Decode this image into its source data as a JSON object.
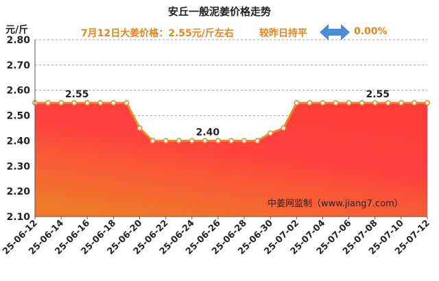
{
  "header": {
    "title": "安丘一般泥姜价格走势",
    "unit_label": "元/斤",
    "price_text": "7月12日大姜价格：2.55元/斤左右",
    "compare_text": "较昨日持平",
    "change_pct": "0.00%",
    "arrow_icon": "double-arrow-icon"
  },
  "watermark": "中姜网监制（www.jiang7.com）",
  "colors": {
    "line": "#e8892b",
    "area_top": "#ff3b3b",
    "area_bottom": "#f07a2a",
    "subtitle": "#e8831a",
    "arrow": "#4a8fd6"
  },
  "chart_data": {
    "type": "area",
    "title": "安丘一般泥姜价格走势",
    "ylabel": "元/斤",
    "xlabel": "",
    "ylim": [
      2.1,
      2.8
    ],
    "yticks": [
      "2.10",
      "2.20",
      "2.30",
      "2.40",
      "2.50",
      "2.60",
      "2.70",
      "2.80"
    ],
    "grid": true,
    "x": [
      "25-06-12",
      "25-06-13",
      "25-06-14",
      "25-06-15",
      "25-06-16",
      "25-06-17",
      "25-06-18",
      "25-06-19",
      "25-06-20",
      "25-06-21",
      "25-06-22",
      "25-06-23",
      "25-06-24",
      "25-06-25",
      "25-06-26",
      "25-06-27",
      "25-06-28",
      "25-06-29",
      "25-06-30",
      "25-07-01",
      "25-07-02",
      "25-07-03",
      "25-07-04",
      "25-07-05",
      "25-07-06",
      "25-07-07",
      "25-07-08",
      "25-07-09",
      "25-07-10",
      "25-07-11",
      "25-07-12"
    ],
    "xtick_labels": [
      "25-06-12",
      "25-06-14",
      "25-06-16",
      "25-06-18",
      "25-06-20",
      "25-06-22",
      "25-06-24",
      "25-06-26",
      "25-06-28",
      "25-06-30",
      "25-07-02",
      "25-07-04",
      "25-07-06",
      "25-07-08",
      "25-07-10",
      "25-07-12"
    ],
    "values": [
      2.55,
      2.55,
      2.55,
      2.55,
      2.55,
      2.55,
      2.55,
      2.55,
      2.45,
      2.4,
      2.4,
      2.4,
      2.4,
      2.4,
      2.4,
      2.4,
      2.4,
      2.4,
      2.43,
      2.45,
      2.55,
      2.55,
      2.55,
      2.55,
      2.55,
      2.55,
      2.55,
      2.55,
      2.55,
      2.55,
      2.55
    ],
    "annotations": [
      {
        "index": 3,
        "text": "2.55"
      },
      {
        "index": 13,
        "text": "2.40"
      },
      {
        "index": 26,
        "text": "2.55"
      }
    ]
  }
}
